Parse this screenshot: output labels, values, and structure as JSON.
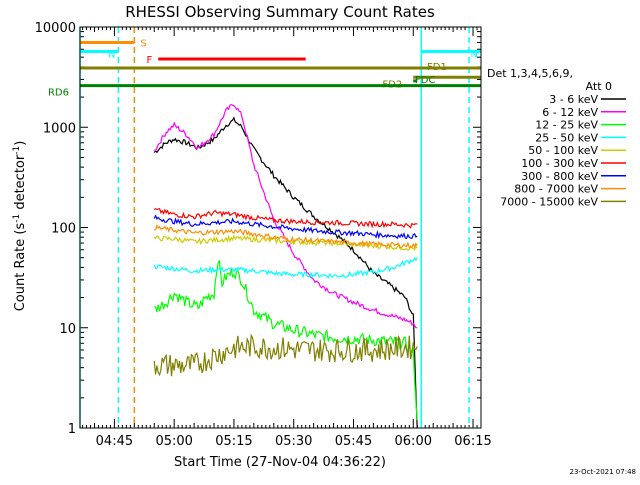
{
  "chart_data": {
    "type": "line",
    "title": "RHESSI Observing Summary Count Rates",
    "xlabel": "Start Time (27-Nov-04 04:36:22)",
    "ylabel_main": "Count Rate (s",
    "ylabel_exp": "-1",
    "ylabel_tail": " detector",
    "ylabel_exp2": "-1",
    "ylabel_close": ")",
    "footer_date": "23-Oct-2021 07:48",
    "y_scale": "log",
    "ylim": [
      1,
      10000
    ],
    "xlim": [
      "04:36:22",
      "06:17"
    ],
    "y_ticks": [
      "1",
      "10",
      "100",
      "1000",
      "10000"
    ],
    "x_ticks": [
      "04:45",
      "05:00",
      "05:15",
      "05:30",
      "05:45",
      "06:00",
      "06:15"
    ],
    "legend": {
      "header_line1": "Det 1,3,4,5,6,9,",
      "header_line2": "Att 0",
      "placement": "right"
    },
    "series": [
      {
        "name": "3 - 6 keV",
        "color": "#000000",
        "x": [
          "04:55",
          "04:58",
          "05:00",
          "05:03",
          "05:06",
          "05:10",
          "05:13",
          "05:15",
          "05:17",
          "05:20",
          "05:25",
          "05:30",
          "05:35",
          "05:40",
          "05:45",
          "05:50",
          "05:55",
          "05:58",
          "06:00",
          "06:01"
        ],
        "values": [
          560,
          700,
          760,
          700,
          620,
          760,
          1050,
          1180,
          1000,
          600,
          330,
          200,
          130,
          90,
          60,
          35,
          25,
          20,
          13,
          1
        ]
      },
      {
        "name": "6 - 12 keV",
        "color": "#ff00ff",
        "x": [
          "04:55",
          "04:58",
          "05:00",
          "05:03",
          "05:06",
          "05:10",
          "05:13",
          "05:15",
          "05:17",
          "05:20",
          "05:25",
          "05:30",
          "05:35",
          "05:40",
          "05:45",
          "05:50",
          "05:55",
          "05:58",
          "06:00",
          "06:01"
        ],
        "values": [
          580,
          900,
          1050,
          850,
          620,
          850,
          1450,
          1720,
          1300,
          420,
          120,
          55,
          30,
          22,
          18,
          15,
          13,
          12,
          11,
          10
        ]
      },
      {
        "name": "12 - 25 keV",
        "color": "#00ff00",
        "x": [
          "04:55",
          "04:58",
          "05:00",
          "05:03",
          "05:06",
          "05:08",
          "05:10",
          "05:11",
          "05:12",
          "05:13",
          "05:15",
          "05:17",
          "05:20",
          "05:25",
          "05:30",
          "05:35",
          "05:40",
          "05:45",
          "05:50",
          "05:55",
          "05:58",
          "06:00",
          "06:01"
        ],
        "values": [
          15,
          18,
          22,
          18,
          16,
          20,
          22,
          50,
          28,
          32,
          37,
          30,
          15,
          11,
          9.5,
          8.5,
          8,
          7.8,
          7.5,
          7.2,
          7,
          5.5,
          1.2
        ]
      },
      {
        "name": "25 - 50 keV",
        "color": "#00ffff",
        "x": [
          "04:55",
          "05:00",
          "05:05",
          "05:10",
          "05:15",
          "05:20",
          "05:25",
          "05:30",
          "05:35",
          "05:40",
          "05:45",
          "05:50",
          "05:55",
          "06:00",
          "06:01"
        ],
        "values": [
          41,
          39,
          37,
          38,
          38,
          37,
          35,
          34,
          34,
          33,
          34,
          36,
          40,
          48,
          50
        ]
      },
      {
        "name": "50 - 100 keV",
        "color": "#cccc00",
        "x": [
          "04:55",
          "05:00",
          "05:05",
          "05:10",
          "05:15",
          "05:20",
          "05:25",
          "05:30",
          "05:35",
          "05:40",
          "05:45",
          "05:50",
          "05:55",
          "06:00",
          "06:01"
        ],
        "values": [
          78,
          77,
          72,
          75,
          78,
          76,
          74,
          72,
          71,
          70,
          68,
          66,
          64,
          62,
          62
        ]
      },
      {
        "name": "100 - 300 keV",
        "color": "#ff0000",
        "x": [
          "04:55",
          "05:00",
          "05:05",
          "05:10",
          "05:15",
          "05:20",
          "05:25",
          "05:30",
          "05:35",
          "05:40",
          "05:45",
          "05:50",
          "05:55",
          "06:00",
          "06:01"
        ],
        "values": [
          150,
          135,
          128,
          140,
          135,
          125,
          118,
          115,
          113,
          112,
          110,
          108,
          108,
          105,
          108
        ]
      },
      {
        "name": "300 - 800 keV",
        "color": "#0000ff",
        "x": [
          "04:55",
          "05:00",
          "05:05",
          "05:10",
          "05:15",
          "05:20",
          "05:25",
          "05:30",
          "05:35",
          "05:40",
          "05:45",
          "05:50",
          "05:55",
          "06:00",
          "06:01"
        ],
        "values": [
          125,
          115,
          108,
          112,
          115,
          108,
          102,
          97,
          93,
          90,
          88,
          85,
          83,
          82,
          82
        ]
      },
      {
        "name": "800 - 7000 keV",
        "color": "#ff8c00",
        "x": [
          "04:55",
          "05:00",
          "05:05",
          "05:10",
          "05:15",
          "05:20",
          "05:25",
          "05:30",
          "05:35",
          "05:40",
          "05:45",
          "05:50",
          "05:55",
          "06:00",
          "06:01"
        ],
        "values": [
          100,
          94,
          88,
          90,
          92,
          86,
          80,
          76,
          74,
          72,
          70,
          68,
          67,
          66,
          66
        ]
      },
      {
        "name": "7000 - 15000 keV",
        "color": "#808000",
        "x": [
          "04:55",
          "05:00",
          "05:05",
          "05:10",
          "05:15",
          "05:20",
          "05:25",
          "05:30",
          "05:35",
          "05:40",
          "05:45",
          "05:50",
          "05:55",
          "06:00",
          "06:01"
        ],
        "values": [
          4.3,
          4.2,
          4.2,
          5.2,
          6.3,
          6.5,
          6.3,
          6.1,
          6,
          6,
          6,
          6,
          6.2,
          6.4,
          6.5
        ]
      }
    ],
    "flag_bars": [
      {
        "label": "S",
        "color": "#ff8c00",
        "y": 7000,
        "x_start": "04:36:22",
        "x_end": "04:50"
      },
      {
        "label": "N",
        "color": "#00ffff",
        "y": 5700,
        "x_start": "04:36:22",
        "x_end": "04:46"
      },
      {
        "label": "N",
        "color": "#00ffff",
        "y": 5700,
        "x_start": "06:02",
        "x_end": "06:17"
      },
      {
        "label": "F",
        "color": "#ff0000",
        "y": 4800,
        "x_start": "04:56",
        "x_end": "05:33"
      },
      {
        "label": "FD1",
        "color": "#808000",
        "y": 3900,
        "x_start": "04:36:22",
        "x_end": "06:17"
      },
      {
        "label": "FD2",
        "color": "#808000",
        "y": 3150,
        "x_start": "06:00",
        "x_end": "06:17"
      },
      {
        "label": "RD6",
        "color": "#008000",
        "y": 2600,
        "x_start": "04:36:22",
        "x_end": "06:17"
      },
      {
        "label": "FDC",
        "color": "#008000",
        "y": 2900,
        "x_start": "06:00",
        "x_end": "06:01"
      }
    ],
    "vlines": [
      {
        "x": "04:36:22",
        "color": "#00ffff",
        "style": "solid"
      },
      {
        "x": "04:46",
        "color": "#00ffff",
        "style": "dashed"
      },
      {
        "x": "04:50",
        "color": "#ff8c00",
        "style": "dashed"
      },
      {
        "x": "06:02",
        "color": "#00ffff",
        "style": "solid"
      },
      {
        "x": "06:14",
        "color": "#00ffff",
        "style": "dashed"
      }
    ]
  }
}
